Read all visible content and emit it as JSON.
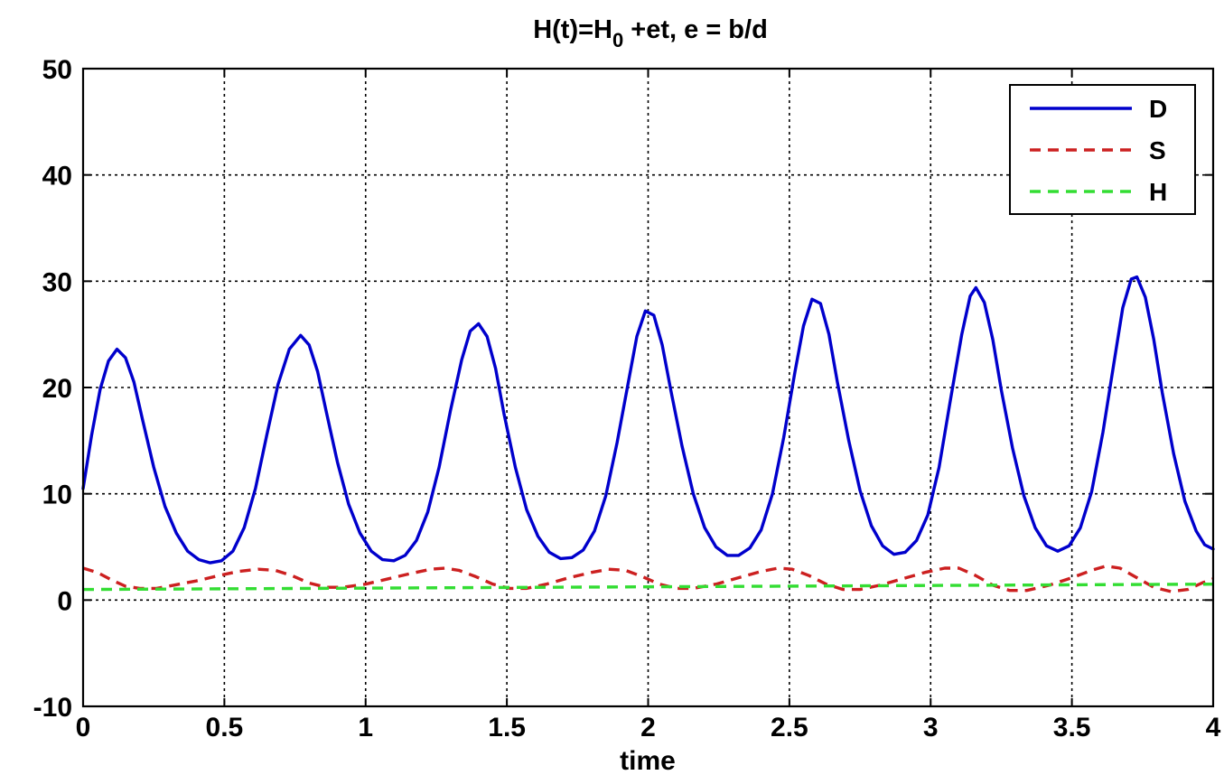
{
  "chart_data": {
    "type": "line",
    "title": {
      "before_sub": "H(t)=H",
      "sub": "0",
      "after_sub": " +et, e = b/d"
    },
    "xlabel": "time",
    "ylabel": "",
    "xlim": [
      0,
      4
    ],
    "ylim": [
      -10,
      50
    ],
    "xticks": [
      0,
      0.5,
      1,
      1.5,
      2,
      2.5,
      3,
      3.5,
      4
    ],
    "xtick_labels": [
      "0",
      "0.5",
      "1",
      "1.5",
      "2",
      "2.5",
      "3",
      "3.5",
      "4"
    ],
    "yticks": [
      -10,
      0,
      10,
      20,
      30,
      40,
      50
    ],
    "ytick_labels": [
      "-10",
      "0",
      "10",
      "20",
      "30",
      "40",
      "50"
    ],
    "grid": true,
    "legend_position": "top-right",
    "series": [
      {
        "name": "D",
        "color": "#0000cc",
        "style": "solid",
        "points": [
          [
            0,
            10.5
          ],
          [
            0.03,
            15.5
          ],
          [
            0.06,
            19.8
          ],
          [
            0.09,
            22.5
          ],
          [
            0.12,
            23.6
          ],
          [
            0.15,
            22.8
          ],
          [
            0.18,
            20.5
          ],
          [
            0.21,
            17.0
          ],
          [
            0.25,
            12.5
          ],
          [
            0.29,
            8.8
          ],
          [
            0.33,
            6.3
          ],
          [
            0.37,
            4.6
          ],
          [
            0.41,
            3.8
          ],
          [
            0.45,
            3.5
          ],
          [
            0.49,
            3.7
          ],
          [
            0.53,
            4.6
          ],
          [
            0.57,
            6.8
          ],
          [
            0.61,
            10.5
          ],
          [
            0.65,
            15.5
          ],
          [
            0.69,
            20.3
          ],
          [
            0.73,
            23.6
          ],
          [
            0.77,
            24.9
          ],
          [
            0.8,
            24.0
          ],
          [
            0.83,
            21.5
          ],
          [
            0.86,
            17.8
          ],
          [
            0.9,
            13.0
          ],
          [
            0.94,
            9.0
          ],
          [
            0.98,
            6.3
          ],
          [
            1.02,
            4.6
          ],
          [
            1.06,
            3.8
          ],
          [
            1.1,
            3.7
          ],
          [
            1.14,
            4.2
          ],
          [
            1.18,
            5.6
          ],
          [
            1.22,
            8.3
          ],
          [
            1.26,
            12.5
          ],
          [
            1.3,
            17.8
          ],
          [
            1.34,
            22.6
          ],
          [
            1.37,
            25.3
          ],
          [
            1.4,
            26.0
          ],
          [
            1.43,
            24.8
          ],
          [
            1.46,
            21.8
          ],
          [
            1.49,
            17.5
          ],
          [
            1.53,
            12.5
          ],
          [
            1.57,
            8.5
          ],
          [
            1.61,
            6.0
          ],
          [
            1.65,
            4.5
          ],
          [
            1.69,
            3.9
          ],
          [
            1.73,
            4.0
          ],
          [
            1.77,
            4.7
          ],
          [
            1.81,
            6.5
          ],
          [
            1.85,
            9.8
          ],
          [
            1.89,
            14.8
          ],
          [
            1.93,
            20.5
          ],
          [
            1.96,
            24.8
          ],
          [
            1.99,
            27.2
          ],
          [
            2.02,
            26.8
          ],
          [
            2.05,
            24.0
          ],
          [
            2.08,
            19.8
          ],
          [
            2.12,
            14.5
          ],
          [
            2.16,
            10.0
          ],
          [
            2.2,
            6.8
          ],
          [
            2.24,
            5.0
          ],
          [
            2.28,
            4.2
          ],
          [
            2.32,
            4.2
          ],
          [
            2.36,
            4.9
          ],
          [
            2.4,
            6.6
          ],
          [
            2.44,
            10.0
          ],
          [
            2.48,
            15.3
          ],
          [
            2.52,
            21.5
          ],
          [
            2.55,
            25.8
          ],
          [
            2.58,
            28.3
          ],
          [
            2.61,
            27.9
          ],
          [
            2.64,
            25.0
          ],
          [
            2.67,
            20.5
          ],
          [
            2.71,
            15.0
          ],
          [
            2.75,
            10.3
          ],
          [
            2.79,
            7.0
          ],
          [
            2.83,
            5.1
          ],
          [
            2.87,
            4.3
          ],
          [
            2.91,
            4.5
          ],
          [
            2.95,
            5.6
          ],
          [
            2.99,
            8.0
          ],
          [
            3.03,
            12.5
          ],
          [
            3.07,
            18.8
          ],
          [
            3.11,
            25.0
          ],
          [
            3.14,
            28.6
          ],
          [
            3.16,
            29.4
          ],
          [
            3.19,
            28.0
          ],
          [
            3.22,
            24.5
          ],
          [
            3.25,
            19.8
          ],
          [
            3.29,
            14.3
          ],
          [
            3.33,
            9.8
          ],
          [
            3.37,
            6.8
          ],
          [
            3.41,
            5.1
          ],
          [
            3.45,
            4.6
          ],
          [
            3.49,
            5.1
          ],
          [
            3.53,
            6.8
          ],
          [
            3.57,
            10.2
          ],
          [
            3.61,
            15.8
          ],
          [
            3.65,
            22.5
          ],
          [
            3.68,
            27.5
          ],
          [
            3.71,
            30.2
          ],
          [
            3.73,
            30.4
          ],
          [
            3.76,
            28.5
          ],
          [
            3.79,
            24.5
          ],
          [
            3.82,
            19.5
          ],
          [
            3.86,
            13.8
          ],
          [
            3.9,
            9.3
          ],
          [
            3.94,
            6.5
          ],
          [
            3.97,
            5.2
          ],
          [
            4.0,
            4.8
          ]
        ]
      },
      {
        "name": "S",
        "color": "#cc2020",
        "style": "dashed",
        "points": [
          [
            0,
            3.0
          ],
          [
            0.05,
            2.6
          ],
          [
            0.1,
            1.9
          ],
          [
            0.15,
            1.3
          ],
          [
            0.2,
            1.1
          ],
          [
            0.26,
            1.1
          ],
          [
            0.32,
            1.4
          ],
          [
            0.4,
            1.8
          ],
          [
            0.48,
            2.3
          ],
          [
            0.55,
            2.7
          ],
          [
            0.62,
            2.9
          ],
          [
            0.68,
            2.8
          ],
          [
            0.74,
            2.3
          ],
          [
            0.8,
            1.6
          ],
          [
            0.86,
            1.2
          ],
          [
            0.92,
            1.2
          ],
          [
            1.0,
            1.5
          ],
          [
            1.08,
            2.0
          ],
          [
            1.16,
            2.5
          ],
          [
            1.23,
            2.9
          ],
          [
            1.28,
            3.0
          ],
          [
            1.33,
            2.8
          ],
          [
            1.39,
            2.2
          ],
          [
            1.45,
            1.5
          ],
          [
            1.51,
            1.1
          ],
          [
            1.57,
            1.1
          ],
          [
            1.64,
            1.5
          ],
          [
            1.72,
            2.1
          ],
          [
            1.8,
            2.6
          ],
          [
            1.86,
            2.9
          ],
          [
            1.92,
            2.8
          ],
          [
            1.98,
            2.2
          ],
          [
            2.04,
            1.5
          ],
          [
            2.1,
            1.1
          ],
          [
            2.16,
            1.1
          ],
          [
            2.24,
            1.5
          ],
          [
            2.32,
            2.1
          ],
          [
            2.4,
            2.7
          ],
          [
            2.46,
            3.0
          ],
          [
            2.51,
            2.9
          ],
          [
            2.57,
            2.3
          ],
          [
            2.63,
            1.5
          ],
          [
            2.69,
            1.0
          ],
          [
            2.75,
            1.0
          ],
          [
            2.82,
            1.4
          ],
          [
            2.9,
            2.0
          ],
          [
            2.98,
            2.6
          ],
          [
            3.05,
            3.0
          ],
          [
            3.1,
            3.0
          ],
          [
            3.16,
            2.3
          ],
          [
            3.22,
            1.4
          ],
          [
            3.28,
            0.9
          ],
          [
            3.34,
            0.9
          ],
          [
            3.42,
            1.4
          ],
          [
            3.5,
            2.1
          ],
          [
            3.57,
            2.8
          ],
          [
            3.62,
            3.2
          ],
          [
            3.67,
            3.0
          ],
          [
            3.73,
            2.1
          ],
          [
            3.79,
            1.2
          ],
          [
            3.85,
            0.8
          ],
          [
            3.91,
            1.0
          ],
          [
            3.96,
            1.6
          ],
          [
            4.0,
            2.0
          ]
        ]
      },
      {
        "name": "H",
        "color": "#33dd33",
        "style": "dashed",
        "points": [
          [
            0,
            1.0
          ],
          [
            4,
            1.5
          ]
        ]
      }
    ]
  }
}
